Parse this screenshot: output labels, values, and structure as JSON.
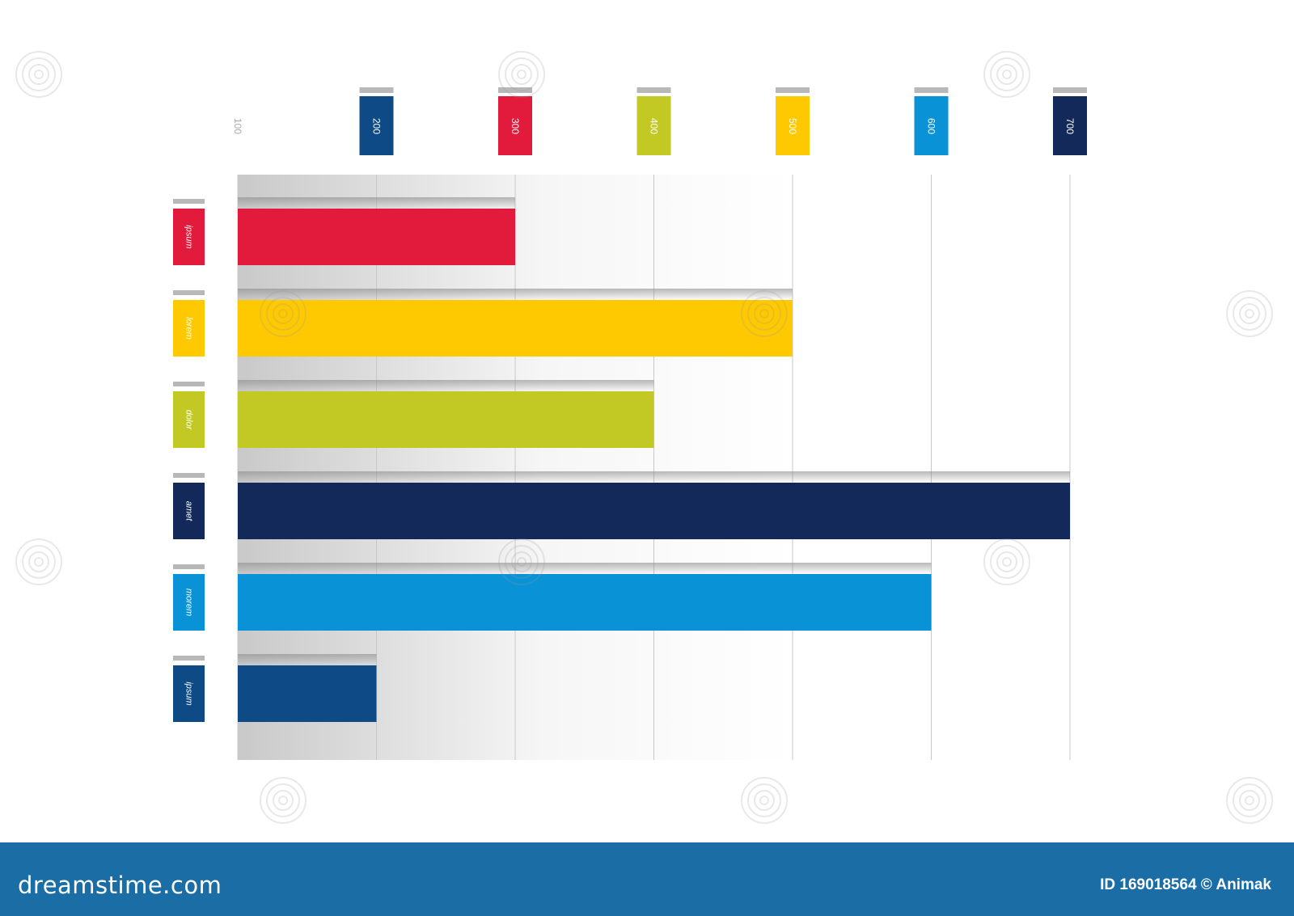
{
  "chart_data": {
    "type": "bar",
    "orientation": "horizontal",
    "x_ticks": [
      100,
      200,
      300,
      400,
      500,
      600,
      700
    ],
    "tick_colors": [
      "#ffffff",
      "#0d4a86",
      "#e21a3c",
      "#c2c924",
      "#fec900",
      "#0a92d7",
      "#13295a"
    ],
    "xlim": [
      100,
      700
    ],
    "grid": true,
    "categories": [
      "ipsum",
      "lorem",
      "dolor",
      "amet",
      "morem",
      "ipsum"
    ],
    "values": [
      300,
      500,
      400,
      700,
      600,
      200
    ],
    "colors": [
      "#e21a3c",
      "#fec900",
      "#c2c924",
      "#13295a",
      "#0a92d7",
      "#0d4a86"
    ]
  },
  "watermark": "dreamstime",
  "footer": {
    "logo": "dreamstime.com",
    "credit": "ID 169018564 © Animak"
  }
}
